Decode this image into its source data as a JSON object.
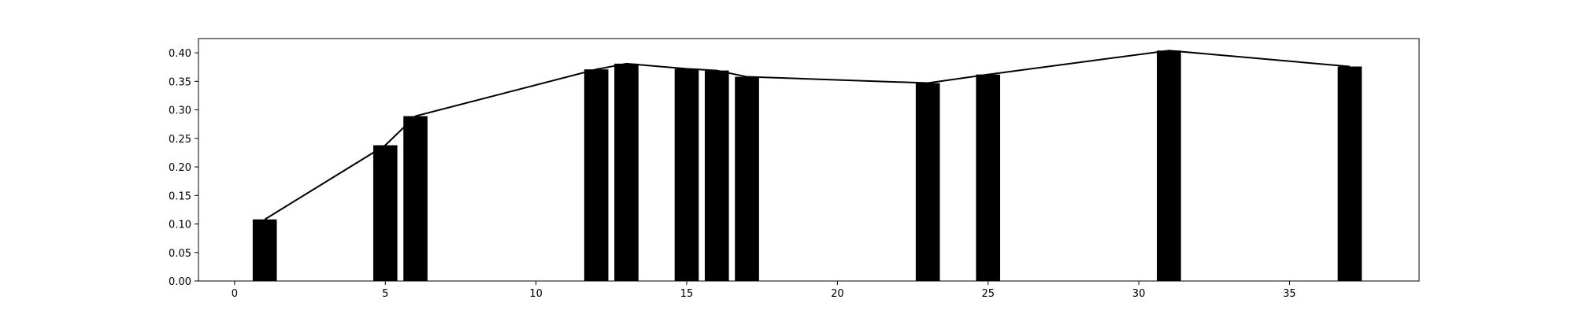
{
  "chart_data": {
    "type": "bar",
    "x": [
      1,
      5,
      6,
      12,
      13,
      15,
      16,
      17,
      23,
      25,
      31,
      37
    ],
    "values": [
      0.108,
      0.238,
      0.289,
      0.371,
      0.381,
      0.372,
      0.369,
      0.358,
      0.347,
      0.362,
      0.404,
      0.376
    ],
    "line_overlay": {
      "x": [
        1,
        5,
        6,
        12,
        13,
        15,
        16,
        17,
        23,
        25,
        31,
        37
      ],
      "y": [
        0.108,
        0.238,
        0.289,
        0.371,
        0.381,
        0.372,
        0.369,
        0.358,
        0.347,
        0.362,
        0.404,
        0.376
      ]
    },
    "title": "",
    "xlabel": "",
    "ylabel": "",
    "xlim": [
      -1.2,
      39.3
    ],
    "ylim": [
      0,
      0.425
    ],
    "xticks": [
      0,
      5,
      10,
      15,
      20,
      25,
      30,
      35
    ],
    "xtick_labels": [
      "0",
      "5",
      "10",
      "15",
      "20",
      "25",
      "30",
      "35"
    ],
    "yticks": [
      0.0,
      0.05,
      0.1,
      0.15,
      0.2,
      0.25,
      0.3,
      0.35,
      0.4
    ],
    "ytick_labels": [
      "0.00",
      "0.05",
      "0.10",
      "0.15",
      "0.20",
      "0.25",
      "0.30",
      "0.35",
      "0.40"
    ],
    "grid": false,
    "legend": "none",
    "bar_color": "#000000",
    "line_color": "#000000"
  }
}
